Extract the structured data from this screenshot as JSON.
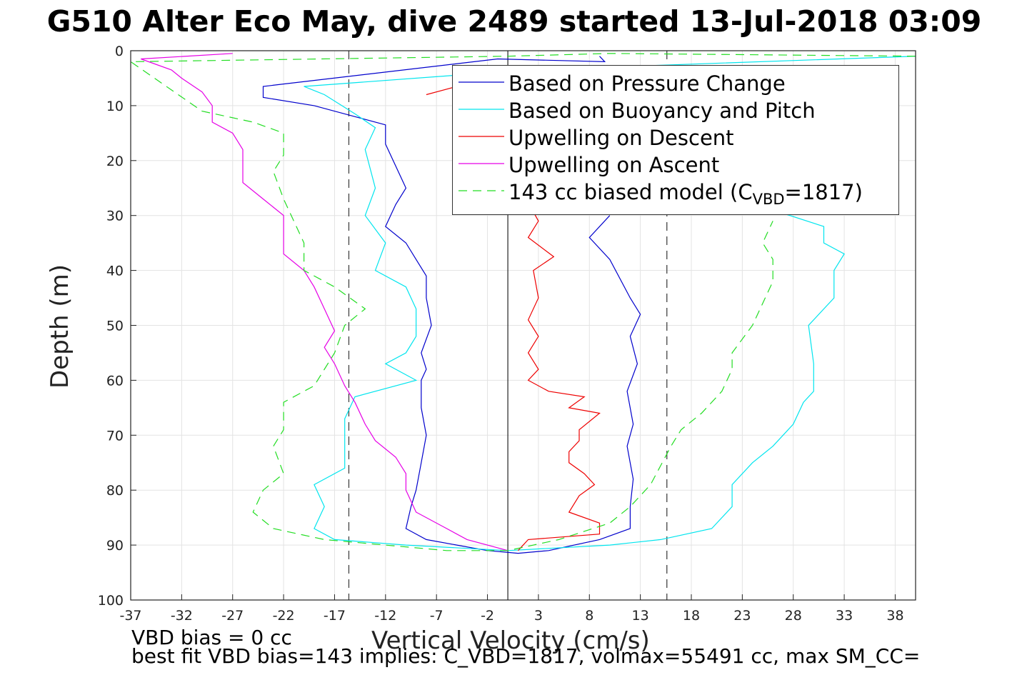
{
  "title": "G510 Alter Eco May, dive 2489 started 13-Jul-2018 03:09",
  "notes": {
    "line1": "VBD bias = 0 cc",
    "line2": "best fit VBD bias=143 implies: C_VBD=1817, volmax=55491 cc, max SM_CC="
  },
  "chart_data": {
    "type": "line",
    "xlabel": "Vertical Velocity (cm/s)",
    "ylabel": "Depth (m)",
    "xlim": [
      -37,
      40
    ],
    "ylim": [
      0,
      100
    ],
    "y_reversed": true,
    "xticks": [
      -37,
      -32,
      -27,
      -22,
      -17,
      -12,
      -7,
      -2,
      3,
      8,
      13,
      18,
      23,
      28,
      33,
      38
    ],
    "yticks": [
      0,
      10,
      20,
      30,
      40,
      50,
      60,
      70,
      80,
      90,
      100
    ],
    "grid": true,
    "legend_position": "top-right",
    "reference_lines": {
      "solid_vertical_x": 0,
      "dashed_vertical_x": [
        -15.6,
        15.6
      ]
    },
    "legend": [
      {
        "label": "Based on Pressure Change",
        "color": "#0000cc",
        "style": "solid"
      },
      {
        "label": "Based on Buoyancy and Pitch",
        "color": "#00e5ee",
        "style": "solid"
      },
      {
        "label": "Upwelling on Descent",
        "color": "#ee0000",
        "style": "solid"
      },
      {
        "label": "Upwelling on Ascent",
        "color": "#e600e6",
        "style": "solid"
      },
      {
        "label": "143 cc biased model (C",
        "sub": "VBD",
        "after": "=1817)",
        "color": "#22dd22",
        "style": "dashed"
      }
    ],
    "series": [
      {
        "name": "Based on Pressure Change",
        "color": "#0000cc",
        "points": [
          [
            9,
            1
          ],
          [
            9.5,
            2
          ],
          [
            -1,
            1.5
          ],
          [
            -24,
            6.5
          ],
          [
            -24,
            8.5
          ],
          [
            -19,
            10
          ],
          [
            -15,
            12
          ],
          [
            -12,
            13.5
          ],
          [
            -12,
            17
          ],
          [
            -11,
            21
          ],
          [
            -10,
            25
          ],
          [
            -11,
            28
          ],
          [
            -12,
            32
          ],
          [
            -10,
            35
          ],
          [
            -9,
            38
          ],
          [
            -8,
            41
          ],
          [
            -8,
            45
          ],
          [
            -7.5,
            50
          ],
          [
            -8.5,
            55
          ],
          [
            -8,
            58
          ],
          [
            -8.5,
            60
          ],
          [
            -8.5,
            65
          ],
          [
            -8,
            70
          ],
          [
            -8.5,
            75
          ],
          [
            -9,
            80
          ],
          [
            -9.5,
            83
          ],
          [
            -10,
            87
          ],
          [
            -8,
            89
          ],
          [
            -5,
            90
          ],
          [
            -2,
            91
          ],
          [
            1,
            91.5
          ],
          [
            4,
            91
          ],
          [
            9,
            89
          ],
          [
            12,
            87
          ],
          [
            12,
            83
          ],
          [
            12.3,
            78
          ],
          [
            11.7,
            72
          ],
          [
            12.3,
            68
          ],
          [
            11.7,
            62
          ],
          [
            12.7,
            57
          ],
          [
            12,
            52
          ],
          [
            13,
            48
          ],
          [
            12,
            45
          ],
          [
            10,
            38
          ],
          [
            8,
            34
          ],
          [
            10,
            30
          ]
        ]
      },
      {
        "name": "Based on Buoyancy and Pitch",
        "color": "#00e5ee",
        "points": [
          [
            40,
            1
          ],
          [
            2,
            3.5
          ],
          [
            -20,
            6.5
          ],
          [
            -18,
            8
          ],
          [
            -15,
            11.5
          ],
          [
            -13,
            14
          ],
          [
            -14,
            18
          ],
          [
            -13,
            25
          ],
          [
            -14,
            30
          ],
          [
            -12,
            35
          ],
          [
            -13,
            40
          ],
          [
            -10,
            43
          ],
          [
            -9,
            47
          ],
          [
            -9,
            52
          ],
          [
            -10,
            55
          ],
          [
            -12,
            57
          ],
          [
            -9,
            60
          ],
          [
            -15,
            63
          ],
          [
            -16,
            67
          ],
          [
            -16,
            72
          ],
          [
            -16,
            76
          ],
          [
            -19,
            79
          ],
          [
            -18,
            83
          ],
          [
            -19,
            87
          ],
          [
            -17,
            89
          ],
          [
            -10,
            90
          ],
          [
            0,
            91
          ],
          [
            10,
            90
          ],
          [
            15,
            89
          ],
          [
            20,
            87
          ],
          [
            22,
            83
          ],
          [
            22,
            79
          ],
          [
            24,
            75
          ],
          [
            26,
            72
          ],
          [
            28,
            68
          ],
          [
            29,
            64
          ],
          [
            30,
            62
          ],
          [
            30,
            57
          ],
          [
            29.5,
            50
          ],
          [
            32,
            45
          ],
          [
            32,
            40
          ],
          [
            33,
            37
          ],
          [
            31,
            35
          ],
          [
            31,
            32
          ],
          [
            26,
            29
          ]
        ]
      },
      {
        "name": "Upwelling on Descent",
        "color": "#ee0000",
        "points": [
          [
            -8,
            8
          ],
          [
            -5,
            6.5
          ],
          [
            -4,
            7.5
          ],
          [
            3,
            31
          ],
          [
            2,
            34
          ],
          [
            4.5,
            37.5
          ],
          [
            2.5,
            40
          ],
          [
            3,
            45
          ],
          [
            2,
            49
          ],
          [
            3,
            52
          ],
          [
            2,
            55
          ],
          [
            3,
            58
          ],
          [
            2,
            60
          ],
          [
            4,
            62
          ],
          [
            7.5,
            63
          ],
          [
            6,
            65
          ],
          [
            9,
            66
          ],
          [
            7,
            69
          ],
          [
            7,
            71
          ],
          [
            6,
            73
          ],
          [
            6,
            75
          ],
          [
            7.5,
            77
          ],
          [
            8.5,
            79
          ],
          [
            7,
            81
          ],
          [
            6,
            84
          ],
          [
            9,
            86
          ],
          [
            9,
            88
          ],
          [
            2,
            89
          ],
          [
            1,
            91
          ]
        ]
      },
      {
        "name": "Upwelling on Ascent",
        "color": "#e600e6",
        "points": [
          [
            -27,
            0.5
          ],
          [
            -36,
            1.5
          ],
          [
            -33,
            3.5
          ],
          [
            -32,
            5
          ],
          [
            -30,
            7.5
          ],
          [
            -29,
            10
          ],
          [
            -29,
            13
          ],
          [
            -27,
            15
          ],
          [
            -26,
            18
          ],
          [
            -26,
            21
          ],
          [
            -26,
            24
          ],
          [
            -24,
            27
          ],
          [
            -22,
            30
          ],
          [
            -22,
            33
          ],
          [
            -22,
            37
          ],
          [
            -20,
            40
          ],
          [
            -19,
            43
          ],
          [
            -18,
            47
          ],
          [
            -17,
            51
          ],
          [
            -18,
            54
          ],
          [
            -17,
            57
          ],
          [
            -16,
            61
          ],
          [
            -15,
            64
          ],
          [
            -14,
            68
          ],
          [
            -13,
            71
          ],
          [
            -11,
            74
          ],
          [
            -10,
            77
          ],
          [
            -10,
            80
          ],
          [
            -9,
            84
          ],
          [
            -6,
            87
          ],
          [
            -4,
            89
          ],
          [
            0,
            91
          ]
        ]
      },
      {
        "name": "143 cc biased model (C_VBD=1817)",
        "color": "#22dd22",
        "dashed": true,
        "points": [
          [
            40,
            1
          ],
          [
            10,
            0.5
          ],
          [
            0,
            1
          ],
          [
            -37,
            2
          ],
          [
            -30,
            11
          ],
          [
            -25,
            13
          ],
          [
            -22,
            15
          ],
          [
            -22,
            19
          ],
          [
            -23,
            22
          ],
          [
            -22,
            27
          ],
          [
            -21,
            31
          ],
          [
            -20,
            35
          ],
          [
            -20,
            40
          ],
          [
            -17,
            43
          ],
          [
            -14,
            47
          ],
          [
            -16,
            50
          ],
          [
            -17,
            55
          ],
          [
            -18,
            58
          ],
          [
            -19,
            61
          ],
          [
            -22,
            64
          ],
          [
            -22,
            69
          ],
          [
            -23,
            72
          ],
          [
            -22,
            77
          ],
          [
            -24,
            80
          ],
          [
            -25,
            84
          ],
          [
            -23,
            87
          ],
          [
            -18,
            89
          ],
          [
            -12,
            90
          ],
          [
            -6,
            91
          ],
          [
            0,
            91
          ],
          [
            5,
            89
          ],
          [
            10,
            86
          ],
          [
            12,
            83
          ],
          [
            14,
            79
          ],
          [
            16,
            72
          ],
          [
            17,
            69
          ],
          [
            19,
            66
          ],
          [
            21,
            62
          ],
          [
            22,
            58
          ],
          [
            22,
            55
          ],
          [
            24,
            50
          ],
          [
            25,
            46
          ],
          [
            26,
            42
          ],
          [
            26,
            38
          ],
          [
            25,
            35
          ],
          [
            26,
            31
          ]
        ]
      }
    ]
  }
}
